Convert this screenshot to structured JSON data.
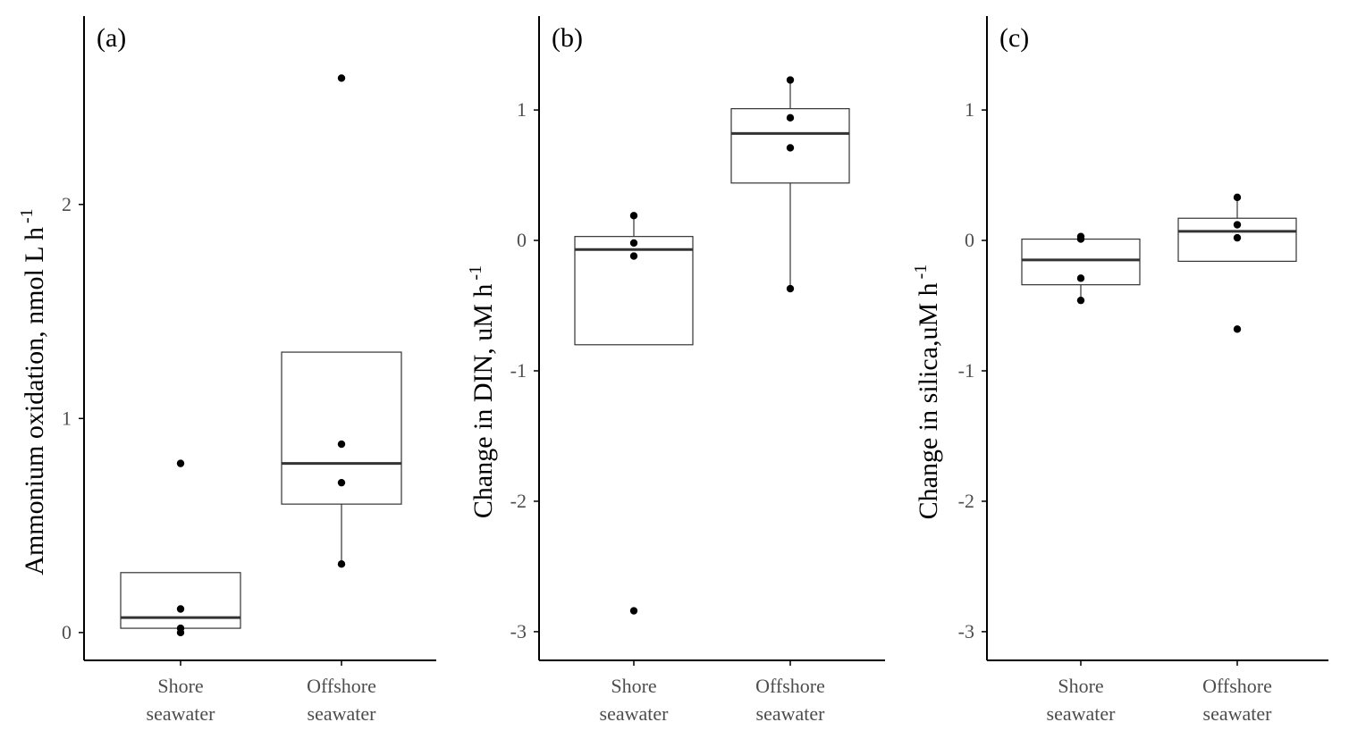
{
  "chart_data": [
    {
      "type": "box",
      "panel_label": "(a)",
      "ylabel": "Ammonium oxidation, nmol L h",
      "ylabel_superscript": "-1",
      "categories": [
        "Shore seawater",
        "Offshore seawater"
      ],
      "category_lines": [
        [
          "Shore",
          "seawater"
        ],
        [
          "Offshore",
          "seawater"
        ]
      ],
      "ylim": [
        -0.13,
        2.88
      ],
      "yticks": [
        0,
        1,
        2
      ],
      "ytick_labels": [
        "0",
        "1",
        "2"
      ],
      "boxes": [
        {
          "category": "Shore seawater",
          "q1": 0.02,
          "median": 0.07,
          "q3": 0.28,
          "whisker_low": 0.02,
          "whisker_high": 0.28,
          "points": [
            0.0,
            0.02,
            0.11,
            0.79
          ]
        },
        {
          "category": "Offshore seawater",
          "q1": 0.6,
          "median": 0.79,
          "q3": 1.31,
          "whisker_low": 0.32,
          "whisker_high": 1.31,
          "points": [
            0.32,
            0.7,
            0.88,
            2.59
          ]
        }
      ]
    },
    {
      "type": "box",
      "panel_label": "(b)",
      "ylabel": "Change in DIN, uM h",
      "ylabel_superscript": "-1",
      "categories": [
        "Shore seawater",
        "Offshore seawater"
      ],
      "category_lines": [
        [
          "Shore",
          "seawater"
        ],
        [
          "Offshore",
          "seawater"
        ]
      ],
      "ylim": [
        -3.22,
        1.72
      ],
      "yticks": [
        -3,
        -2,
        -1,
        0,
        1
      ],
      "ytick_labels": [
        "-3",
        "-2",
        "-1",
        "0",
        "1"
      ],
      "boxes": [
        {
          "category": "Shore seawater",
          "q1": -0.8,
          "median": -0.07,
          "q3": 0.03,
          "whisker_low": -0.8,
          "whisker_high": 0.19,
          "points": [
            -2.84,
            -0.12,
            -0.02,
            0.19
          ]
        },
        {
          "category": "Offshore seawater",
          "q1": 0.44,
          "median": 0.82,
          "q3": 1.01,
          "whisker_low": -0.37,
          "whisker_high": 1.23,
          "points": [
            -0.37,
            0.71,
            0.94,
            1.23
          ]
        }
      ]
    },
    {
      "type": "box",
      "panel_label": "(c)",
      "ylabel": "Change in silica,uM h",
      "ylabel_superscript": "-1",
      "categories": [
        "Shore seawater",
        "Offshore seawater"
      ],
      "category_lines": [
        [
          "Shore",
          "seawater"
        ],
        [
          "Offshore",
          "seawater"
        ]
      ],
      "ylim": [
        -3.22,
        1.72
      ],
      "yticks": [
        -3,
        -2,
        -1,
        0,
        1
      ],
      "ytick_labels": [
        "-3",
        "-2",
        "-1",
        "0",
        "1"
      ],
      "boxes": [
        {
          "category": "Shore seawater",
          "q1": -0.34,
          "median": -0.15,
          "q3": 0.01,
          "whisker_low": -0.46,
          "whisker_high": 0.02,
          "points": [
            -0.46,
            -0.29,
            0.01,
            0.03
          ]
        },
        {
          "category": "Offshore seawater",
          "q1": -0.16,
          "median": 0.07,
          "q3": 0.17,
          "whisker_low": -0.16,
          "whisker_high": 0.33,
          "points": [
            -0.68,
            0.02,
            0.12,
            0.33
          ]
        }
      ]
    }
  ],
  "colors": {
    "axis": "#000000",
    "box_outline": "#333333",
    "median": "#333333",
    "whisker": "#333333",
    "point": "#000000",
    "tick_label": "#4d4d4d"
  }
}
